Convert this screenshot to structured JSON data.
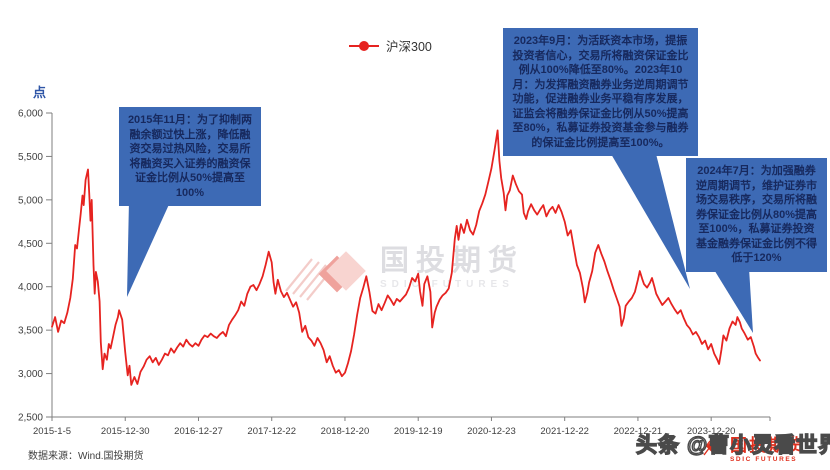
{
  "legend": {
    "label": "沪深300"
  },
  "y_axis": {
    "unit": "点"
  },
  "callouts": [
    {
      "text": "2015年11月：为了抑制两融余额过快上涨，降低融资交易过热风险，交易所将融资买入证券的融资保证金比例从50%提高至100%"
    },
    {
      "text": "2023年9月：为活跃资本市场，提振投资者信心，交易所将融资保证金比例从100%降低至80%。2023年10月：为发挥融资融券业务逆周期调节功能，促进融券业务平稳有序发展，证监会将融券保证金比例从50%提高至80%，私募证券投资基金参与融券的保证金比例提高至100%。"
    },
    {
      "text": "2024年7月：为加强融券逆周期调节，维护证券市场交易秩序，交易所将融券保证金比例从80%提高至100%，私募证券投资基金融券保证金比例不得低于120%"
    }
  ],
  "watermark_center": {
    "cn": "国投期货",
    "en": "SDIC FUTURES"
  },
  "corner_logo": {
    "cn": "国投期货",
    "en": "SDIC FUTURES"
  },
  "overlay_text": "头条 @曹小灵看世界",
  "source": "数据来源：Wind.国投期货",
  "colors": {
    "line": "#e62320",
    "callout_bg": "#3d6ab5",
    "callout_text": "#17295e",
    "axis": "#7f7f7f",
    "tick_text": "#404040",
    "unit_blue": "#2e55a6",
    "logo_red": "#e0301e"
  },
  "chart_data": {
    "type": "line",
    "title": "",
    "series_name": "沪深300",
    "ylabel": "点",
    "ylim": [
      2500,
      6000
    ],
    "y_tick_step": 500,
    "y_tick_labels": [
      "2,500",
      "3,000",
      "3,500",
      "4,000",
      "4,500",
      "5,000",
      "5,500",
      "6,000"
    ],
    "x_tick_labels": [
      "2015-1-5",
      "2015-12-30",
      "2016-12-27",
      "2017-12-22",
      "2018-12-20",
      "2019-12-19",
      "2020-12-23",
      "2021-12-22",
      "2022-12-21",
      "2023-12-20"
    ],
    "x_unit_months": 116,
    "grid": false,
    "legend_position": "top",
    "points": [
      [
        0,
        3540
      ],
      [
        0.5,
        3650
      ],
      [
        1,
        3480
      ],
      [
        1.5,
        3610
      ],
      [
        2,
        3580
      ],
      [
        2.5,
        3700
      ],
      [
        3,
        3870
      ],
      [
        3.4,
        4090
      ],
      [
        3.8,
        4480
      ],
      [
        4.1,
        4440
      ],
      [
        4.4,
        4650
      ],
      [
        4.7,
        4840
      ],
      [
        5,
        5050
      ],
      [
        5.2,
        4940
      ],
      [
        5.5,
        5230
      ],
      [
        5.9,
        5350
      ],
      [
        6.1,
        5080
      ],
      [
        6.3,
        4760
      ],
      [
        6.5,
        5000
      ],
      [
        6.8,
        4250
      ],
      [
        7,
        3920
      ],
      [
        7.2,
        4170
      ],
      [
        7.5,
        4060
      ],
      [
        7.8,
        3830
      ],
      [
        8,
        3360
      ],
      [
        8.3,
        3050
      ],
      [
        8.6,
        3230
      ],
      [
        9,
        3160
      ],
      [
        9.3,
        3340
      ],
      [
        9.6,
        3290
      ],
      [
        10,
        3420
      ],
      [
        10.4,
        3560
      ],
      [
        10.8,
        3650
      ],
      [
        11,
        3730
      ],
      [
        11.5,
        3620
      ],
      [
        12,
        3250
      ],
      [
        12.4,
        2980
      ],
      [
        12.7,
        3090
      ],
      [
        13,
        2870
      ],
      [
        13.5,
        2960
      ],
      [
        14,
        2880
      ],
      [
        14.5,
        3020
      ],
      [
        15,
        3080
      ],
      [
        15.5,
        3160
      ],
      [
        16,
        3200
      ],
      [
        16.5,
        3130
      ],
      [
        17,
        3180
      ],
      [
        17.5,
        3100
      ],
      [
        18,
        3160
      ],
      [
        18.5,
        3230
      ],
      [
        19,
        3210
      ],
      [
        19.5,
        3290
      ],
      [
        20,
        3240
      ],
      [
        20.5,
        3300
      ],
      [
        21,
        3350
      ],
      [
        21.5,
        3310
      ],
      [
        22,
        3390
      ],
      [
        22.5,
        3340
      ],
      [
        23,
        3310
      ],
      [
        23.5,
        3350
      ],
      [
        24,
        3320
      ],
      [
        24.5,
        3390
      ],
      [
        25,
        3440
      ],
      [
        25.5,
        3420
      ],
      [
        26,
        3460
      ],
      [
        26.5,
        3430
      ],
      [
        27,
        3410
      ],
      [
        27.5,
        3450
      ],
      [
        28,
        3480
      ],
      [
        28.5,
        3430
      ],
      [
        29,
        3560
      ],
      [
        29.5,
        3620
      ],
      [
        30,
        3670
      ],
      [
        30.5,
        3730
      ],
      [
        31,
        3830
      ],
      [
        31.5,
        3780
      ],
      [
        32,
        3920
      ],
      [
        32.5,
        4000
      ],
      [
        33,
        4020
      ],
      [
        33.5,
        3960
      ],
      [
        34,
        4030
      ],
      [
        34.5,
        4120
      ],
      [
        35,
        4250
      ],
      [
        35.5,
        4403
      ],
      [
        36,
        4280
      ],
      [
        36.3,
        4050
      ],
      [
        36.6,
        3920
      ],
      [
        37,
        4080
      ],
      [
        37.5,
        3950
      ],
      [
        38,
        3880
      ],
      [
        38.5,
        3930
      ],
      [
        39,
        3850
      ],
      [
        39.5,
        3770
      ],
      [
        40,
        3820
      ],
      [
        40.5,
        3700
      ],
      [
        41,
        3480
      ],
      [
        41.5,
        3550
      ],
      [
        42,
        3420
      ],
      [
        42.5,
        3380
      ],
      [
        43,
        3320
      ],
      [
        43.5,
        3410
      ],
      [
        44,
        3350
      ],
      [
        44.5,
        3270
      ],
      [
        45,
        3130
      ],
      [
        45.5,
        3200
      ],
      [
        46,
        3090
      ],
      [
        46.5,
        3010
      ],
      [
        47,
        3040
      ],
      [
        47.5,
        2970
      ],
      [
        48,
        3010
      ],
      [
        48.5,
        3120
      ],
      [
        49,
        3260
      ],
      [
        49.5,
        3450
      ],
      [
        50,
        3680
      ],
      [
        50.5,
        3870
      ],
      [
        51,
        3990
      ],
      [
        51.5,
        4120
      ],
      [
        52,
        3940
      ],
      [
        52.5,
        3720
      ],
      [
        53,
        3690
      ],
      [
        53.5,
        3800
      ],
      [
        54,
        3730
      ],
      [
        54.5,
        3810
      ],
      [
        55,
        3900
      ],
      [
        55.5,
        3850
      ],
      [
        56,
        3790
      ],
      [
        56.5,
        3860
      ],
      [
        57,
        3830
      ],
      [
        57.5,
        3870
      ],
      [
        58,
        3910
      ],
      [
        58.5,
        3990
      ],
      [
        59,
        4100
      ],
      [
        59.5,
        4060
      ],
      [
        60,
        4150
      ],
      [
        60.3,
        3950
      ],
      [
        60.7,
        3780
      ],
      [
        61,
        4030
      ],
      [
        61.5,
        4120
      ],
      [
        62,
        3940
      ],
      [
        62.3,
        3530
      ],
      [
        62.7,
        3700
      ],
      [
        63,
        3770
      ],
      [
        63.5,
        3850
      ],
      [
        64,
        3900
      ],
      [
        64.5,
        3930
      ],
      [
        65,
        3980
      ],
      [
        65.5,
        4160
      ],
      [
        66,
        4550
      ],
      [
        66.3,
        4700
      ],
      [
        66.6,
        4540
      ],
      [
        67,
        4720
      ],
      [
        67.5,
        4620
      ],
      [
        68,
        4770
      ],
      [
        68.5,
        4650
      ],
      [
        69,
        4600
      ],
      [
        69.5,
        4710
      ],
      [
        70,
        4870
      ],
      [
        70.5,
        4960
      ],
      [
        71,
        5060
      ],
      [
        71.5,
        5210
      ],
      [
        72,
        5360
      ],
      [
        72.5,
        5570
      ],
      [
        73,
        5800
      ],
      [
        73.3,
        5450
      ],
      [
        73.6,
        5250
      ],
      [
        74,
        5080
      ],
      [
        74.3,
        4880
      ],
      [
        74.6,
        5050
      ],
      [
        75,
        5110
      ],
      [
        75.5,
        5280
      ],
      [
        76,
        5180
      ],
      [
        76.5,
        5100
      ],
      [
        77,
        5060
      ],
      [
        77.3,
        4850
      ],
      [
        77.7,
        4780
      ],
      [
        78,
        4870
      ],
      [
        78.5,
        4950
      ],
      [
        79,
        4880
      ],
      [
        79.5,
        4830
      ],
      [
        80,
        4890
      ],
      [
        80.5,
        4940
      ],
      [
        81,
        4810
      ],
      [
        81.5,
        4880
      ],
      [
        82,
        4920
      ],
      [
        82.5,
        4850
      ],
      [
        83,
        4940
      ],
      [
        83.5,
        4860
      ],
      [
        84,
        4750
      ],
      [
        84.5,
        4590
      ],
      [
        85,
        4650
      ],
      [
        85.5,
        4450
      ],
      [
        86,
        4250
      ],
      [
        86.5,
        4160
      ],
      [
        87,
        3980
      ],
      [
        87.3,
        3820
      ],
      [
        87.7,
        3930
      ],
      [
        88,
        4050
      ],
      [
        88.5,
        4180
      ],
      [
        89,
        4390
      ],
      [
        89.5,
        4480
      ],
      [
        90,
        4380
      ],
      [
        90.5,
        4290
      ],
      [
        91,
        4180
      ],
      [
        91.5,
        4080
      ],
      [
        92,
        3970
      ],
      [
        92.5,
        3870
      ],
      [
        93,
        3770
      ],
      [
        93.3,
        3550
      ],
      [
        93.7,
        3640
      ],
      [
        94,
        3780
      ],
      [
        94.5,
        3830
      ],
      [
        95,
        3870
      ],
      [
        95.5,
        3940
      ],
      [
        96,
        4080
      ],
      [
        96.3,
        4180
      ],
      [
        96.7,
        4090
      ],
      [
        97,
        4030
      ],
      [
        97.5,
        3990
      ],
      [
        98,
        4050
      ],
      [
        98.3,
        4100
      ],
      [
        98.7,
        4000
      ],
      [
        99,
        3920
      ],
      [
        99.5,
        3850
      ],
      [
        100,
        3790
      ],
      [
        100.5,
        3830
      ],
      [
        101,
        3870
      ],
      [
        101.5,
        3800
      ],
      [
        102,
        3740
      ],
      [
        102.5,
        3690
      ],
      [
        103,
        3730
      ],
      [
        103.5,
        3640
      ],
      [
        104,
        3560
      ],
      [
        104.5,
        3520
      ],
      [
        105,
        3450
      ],
      [
        105.5,
        3480
      ],
      [
        106,
        3420
      ],
      [
        106.5,
        3340
      ],
      [
        107,
        3380
      ],
      [
        107.5,
        3280
      ],
      [
        108,
        3340
      ],
      [
        108.5,
        3230
      ],
      [
        109,
        3160
      ],
      [
        109.3,
        3110
      ],
      [
        109.7,
        3280
      ],
      [
        110,
        3440
      ],
      [
        110.5,
        3380
      ],
      [
        111,
        3520
      ],
      [
        111.5,
        3600
      ],
      [
        112,
        3560
      ],
      [
        112.3,
        3650
      ],
      [
        112.7,
        3590
      ],
      [
        113,
        3520
      ],
      [
        113.5,
        3460
      ],
      [
        114,
        3390
      ],
      [
        114.5,
        3420
      ],
      [
        115,
        3310
      ],
      [
        115.3,
        3230
      ],
      [
        115.7,
        3180
      ],
      [
        116,
        3150
      ]
    ]
  }
}
